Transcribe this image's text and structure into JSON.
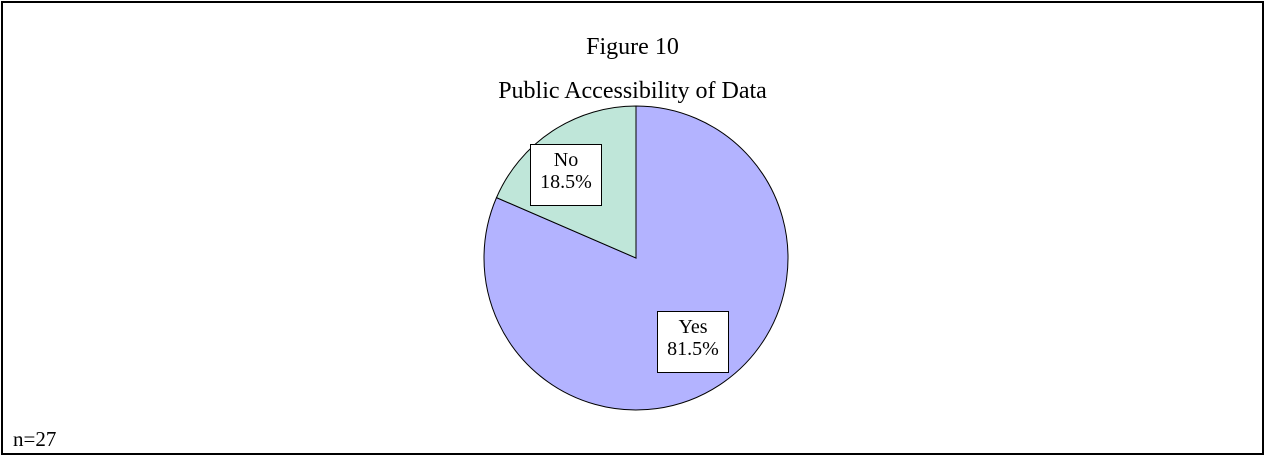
{
  "figure": {
    "number_label": "Figure 10",
    "note": "n=27"
  },
  "chart_data": {
    "type": "pie",
    "title": "Public Accessibility of Data",
    "subtitle": "Figure 10",
    "slices": [
      {
        "label": "Yes",
        "value": 81.5,
        "value_label": "81.5%",
        "color": "#b3b3ff"
      },
      {
        "label": "No",
        "value": 18.5,
        "value_label": "18.5%",
        "color": "#bfe6d9"
      }
    ],
    "start_angle_deg": 0,
    "direction": "clockwise",
    "legend": "none"
  }
}
